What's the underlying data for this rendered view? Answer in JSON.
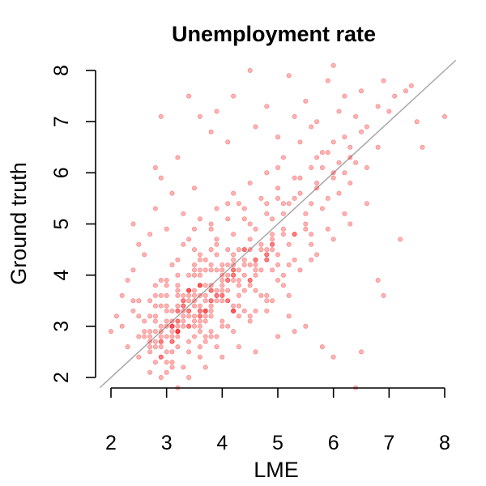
{
  "chart_data": {
    "type": "scatter",
    "title": "Unemployment rate",
    "xlabel": "LME",
    "ylabel": "Ground truth",
    "xlim": [
      2,
      8
    ],
    "ylim": [
      2,
      8
    ],
    "xticks": [
      "2",
      "3",
      "4",
      "5",
      "6",
      "7",
      "8"
    ],
    "yticks": [
      "2",
      "3",
      "4",
      "5",
      "6",
      "7",
      "8"
    ],
    "reference_line": {
      "type": "identity",
      "label": "y = x",
      "color": "#a8a8a8"
    },
    "series_color": "#ff0000",
    "grid": false,
    "legend": "none",
    "points": [
      [
        2.9,
        3.6
      ],
      [
        3.1,
        2.7
      ],
      [
        3.9,
        3.6
      ],
      [
        2.4,
        3.5
      ],
      [
        3.7,
        4.1
      ],
      [
        4.8,
        4.4
      ],
      [
        4.3,
        5.4
      ],
      [
        4.1,
        5.4
      ],
      [
        3.4,
        3.0
      ],
      [
        3.1,
        2.2
      ],
      [
        3.8,
        4.9
      ],
      [
        4.5,
        3.1
      ],
      [
        3.6,
        2.9
      ],
      [
        2.7,
        2.7
      ],
      [
        3.5,
        4.1
      ],
      [
        3.8,
        2.8
      ],
      [
        3.7,
        3.3
      ],
      [
        4.4,
        3.7
      ],
      [
        5.1,
        5.2
      ],
      [
        5.2,
        3.2
      ],
      [
        3.2,
        3.1
      ],
      [
        3.4,
        2.5
      ],
      [
        5.3,
        4.8
      ],
      [
        4.8,
        5.4
      ],
      [
        3.1,
        2.7
      ],
      [
        3.4,
        3.7
      ],
      [
        3.6,
        3.2
      ],
      [
        2.9,
        3.4
      ],
      [
        3.8,
        3.3
      ],
      [
        3.2,
        3.6
      ],
      [
        3.0,
        2.5
      ],
      [
        4.6,
        4.3
      ],
      [
        2.9,
        2.8
      ],
      [
        4.8,
        3.3
      ],
      [
        4.6,
        3.3
      ],
      [
        4.4,
        4.5
      ],
      [
        3.6,
        4.4
      ],
      [
        5.3,
        5.5
      ],
      [
        5.6,
        4.8
      ],
      [
        4.2,
        3.3
      ],
      [
        2.9,
        2.6
      ],
      [
        5.2,
        3.6
      ],
      [
        3.1,
        3.0
      ],
      [
        4.8,
        3.6
      ],
      [
        5.5,
        5.0
      ],
      [
        4.4,
        4.5
      ],
      [
        4.3,
        3.2
      ],
      [
        5.1,
        4.0
      ],
      [
        3.3,
        3.5
      ],
      [
        2.8,
        2.6
      ],
      [
        2.5,
        3.5
      ],
      [
        4.5,
        4.7
      ],
      [
        5.1,
        4.9
      ],
      [
        4.5,
        3.9
      ],
      [
        3.8,
        4.1
      ],
      [
        2.8,
        3.6
      ],
      [
        4.6,
        4.1
      ],
      [
        3.5,
        3.2
      ],
      [
        2.8,
        3.8
      ],
      [
        3.5,
        4.2
      ],
      [
        2.7,
        3.2
      ],
      [
        3.7,
        3.1
      ],
      [
        3.2,
        2.8
      ],
      [
        3.8,
        4.5
      ],
      [
        3.6,
        4.1
      ],
      [
        3.1,
        2.9
      ],
      [
        3.7,
        4.3
      ],
      [
        3.7,
        3.3
      ],
      [
        2.9,
        2.7
      ],
      [
        5.6,
        5.4
      ],
      [
        4.2,
        4.1
      ],
      [
        3.9,
        2.8
      ],
      [
        3.4,
        3.6
      ],
      [
        5.2,
        5.4
      ],
      [
        4.2,
        3.9
      ],
      [
        3.4,
        3.3
      ],
      [
        4.9,
        5.1
      ],
      [
        4.5,
        3.9
      ],
      [
        5.8,
        6.1
      ],
      [
        3.2,
        2.9
      ],
      [
        4.0,
        3.6
      ],
      [
        3.8,
        3.5
      ],
      [
        2.8,
        2.7
      ],
      [
        4.9,
        4.8
      ],
      [
        3.7,
        2.7
      ],
      [
        5.0,
        4.4
      ],
      [
        3.9,
        4.6
      ],
      [
        4.3,
        3.6
      ],
      [
        3.6,
        3.3
      ],
      [
        4.0,
        3.9
      ],
      [
        3.2,
        4.0
      ],
      [
        4.9,
        4.6
      ],
      [
        4.5,
        4.5
      ],
      [
        3.2,
        2.9
      ],
      [
        4.2,
        3.3
      ],
      [
        3.6,
        3.8
      ],
      [
        4.2,
        4.2
      ],
      [
        3.0,
        3.9
      ],
      [
        4.2,
        3.4
      ],
      [
        3.9,
        3.5
      ],
      [
        3.2,
        3.7
      ],
      [
        4.1,
        4.5
      ],
      [
        3.0,
        3.3
      ],
      [
        4.2,
        3.3
      ],
      [
        4.2,
        4.1
      ],
      [
        4.1,
        3.5
      ],
      [
        3.5,
        4.5
      ],
      [
        3.1,
        3.0
      ],
      [
        3.1,
        3.1
      ],
      [
        4.0,
        3.5
      ],
      [
        3.0,
        3.6
      ],
      [
        3.8,
        3.8
      ],
      [
        5.0,
        4.2
      ],
      [
        3.2,
        3.0
      ],
      [
        2.9,
        2.7
      ],
      [
        3.5,
        4.0
      ],
      [
        3.2,
        3.3
      ],
      [
        4.9,
        3.5
      ],
      [
        4.3,
        3.8
      ],
      [
        3.6,
        3.1
      ],
      [
        3.3,
        3.4
      ],
      [
        3.6,
        4.0
      ],
      [
        4.9,
        4.6
      ],
      [
        2.5,
        2.8
      ],
      [
        3.4,
        3.7
      ],
      [
        3.6,
        2.6
      ],
      [
        4.8,
        4.5
      ],
      [
        5.6,
        4.3
      ],
      [
        4.9,
        4.7
      ],
      [
        4.0,
        4.1
      ],
      [
        4.1,
        3.9
      ],
      [
        5.1,
        4.8
      ],
      [
        3.6,
        3.2
      ],
      [
        5.0,
        5.5
      ],
      [
        2.9,
        2.9
      ],
      [
        3.6,
        3.8
      ],
      [
        4.6,
        4.0
      ],
      [
        4.0,
        3.7
      ],
      [
        3.2,
        3.1
      ],
      [
        5.2,
        4.2
      ],
      [
        4.4,
        5.1
      ],
      [
        3.7,
        3.2
      ],
      [
        4.2,
        4.0
      ],
      [
        3.3,
        3.3
      ],
      [
        3.8,
        3.7
      ],
      [
        4.7,
        4.5
      ],
      [
        3.6,
        3.8
      ],
      [
        3.9,
        4.4
      ],
      [
        3.4,
        3.0
      ],
      [
        2.7,
        2.8
      ],
      [
        3.3,
        3.1
      ],
      [
        4.2,
        4.3
      ],
      [
        4.3,
        4.5
      ],
      [
        3.1,
        3.0
      ],
      [
        3.8,
        3.5
      ],
      [
        4.8,
        4.3
      ],
      [
        2.9,
        2.4
      ],
      [
        3.5,
        3.6
      ],
      [
        4.8,
        4.3
      ],
      [
        4.0,
        3.0
      ],
      [
        4.0,
        3.6
      ],
      [
        3.5,
        3.5
      ],
      [
        3.8,
        4.2
      ],
      [
        3.6,
        3.0
      ],
      [
        4.1,
        4.0
      ],
      [
        4.6,
        4.2
      ],
      [
        3.3,
        3.4
      ],
      [
        4.5,
        3.8
      ],
      [
        3.3,
        3.6
      ],
      [
        3.0,
        3.0
      ],
      [
        4.6,
        4.9
      ],
      [
        2.7,
        2.6
      ],
      [
        3.5,
        3.1
      ],
      [
        2.9,
        2.4
      ],
      [
        3.2,
        3.3
      ],
      [
        4.4,
        4.3
      ],
      [
        3.1,
        2.8
      ],
      [
        3.3,
        3.2
      ],
      [
        3.4,
        3.7
      ],
      [
        3.3,
        3.5
      ],
      [
        4.2,
        4.0
      ],
      [
        3.7,
        3.6
      ],
      [
        4.8,
        4.4
      ],
      [
        2.8,
        3.2
      ],
      [
        3.7,
        3.3
      ],
      [
        5.3,
        4.8
      ],
      [
        3.9,
        3.6
      ],
      [
        4.0,
        3.8
      ],
      [
        4.5,
        4.2
      ],
      [
        3.4,
        3.2
      ],
      [
        3.5,
        3.7
      ],
      [
        4.1,
        3.5
      ],
      [
        3.8,
        3.2
      ],
      [
        4.7,
        4.1
      ],
      [
        3.0,
        3.1
      ],
      [
        3.9,
        4.1
      ],
      [
        3.6,
        3.3
      ],
      [
        4.4,
        4.0
      ],
      [
        3.2,
        2.9
      ],
      [
        4.0,
        4.2
      ],
      [
        3.6,
        3.4
      ],
      [
        2.6,
        2.9
      ],
      [
        4.1,
        3.9
      ],
      [
        3.2,
        2.9
      ],
      [
        3.8,
        3.7
      ],
      [
        3.5,
        3.4
      ],
      [
        4.3,
        4.1
      ],
      [
        3.0,
        2.8
      ],
      [
        4.1,
        3.7
      ],
      [
        3.4,
        3.5
      ],
      [
        4.6,
        4.3
      ],
      [
        3.9,
        3.7
      ],
      [
        3.3,
        3.0
      ],
      [
        4.2,
        4.4
      ],
      [
        3.7,
        3.5
      ],
      [
        2.8,
        2.9
      ],
      [
        4.9,
        4.5
      ],
      [
        3.1,
        3.3
      ],
      [
        3.6,
        3.6
      ],
      [
        4.3,
        3.9
      ],
      [
        3.5,
        3.0
      ],
      [
        4.0,
        4.0
      ],
      [
        3.2,
        3.4
      ],
      [
        4.7,
        4.6
      ],
      [
        3.8,
        3.4
      ],
      [
        2.9,
        3.0
      ],
      [
        4.4,
        4.2
      ],
      [
        3.4,
        3.3
      ],
      [
        4.1,
        4.2
      ],
      [
        3.7,
        3.8
      ],
      [
        5.5,
        5.2
      ],
      [
        6.1,
        6.2
      ],
      [
        5.7,
        5.8
      ],
      [
        6.3,
        6.5
      ],
      [
        5.9,
        5.5
      ],
      [
        6.4,
        7.1
      ],
      [
        6.6,
        6.9
      ],
      [
        6.2,
        6.0
      ],
      [
        5.4,
        5.9
      ],
      [
        6.0,
        6.6
      ],
      [
        6.9,
        7.8
      ],
      [
        7.1,
        7.5
      ],
      [
        7.6,
        6.5
      ],
      [
        8.0,
        7.1
      ],
      [
        7.3,
        7.6
      ],
      [
        6.8,
        7.3
      ],
      [
        6.5,
        6.8
      ],
      [
        5.8,
        6.4
      ],
      [
        5.0,
        6.1
      ],
      [
        5.6,
        6.9
      ],
      [
        6.2,
        7.5
      ],
      [
        5.9,
        7.8
      ],
      [
        6.0,
        8.1
      ],
      [
        5.5,
        7.4
      ],
      [
        4.8,
        7.3
      ],
      [
        5.2,
        7.9
      ],
      [
        4.5,
        8.0
      ],
      [
        4.2,
        7.5
      ],
      [
        3.9,
        7.2
      ],
      [
        3.6,
        7.1
      ],
      [
        3.4,
        7.5
      ],
      [
        2.9,
        7.1
      ],
      [
        3.8,
        6.8
      ],
      [
        4.1,
        6.6
      ],
      [
        4.6,
        6.9
      ],
      [
        5.0,
        6.7
      ],
      [
        5.3,
        7.1
      ],
      [
        5.7,
        7.0
      ],
      [
        6.1,
        7.2
      ],
      [
        6.5,
        7.6
      ],
      [
        6.8,
        6.5
      ],
      [
        7.0,
        7.2
      ],
      [
        7.4,
        7.7
      ],
      [
        7.5,
        7.0
      ],
      [
        7.2,
        4.7
      ],
      [
        6.8,
        3.9
      ],
      [
        6.9,
        3.6
      ],
      [
        6.5,
        2.5
      ],
      [
        6.0,
        2.4
      ],
      [
        6.4,
        1.8
      ],
      [
        5.8,
        2.6
      ],
      [
        5.5,
        3.0
      ],
      [
        5.3,
        2.9
      ],
      [
        5.0,
        2.8
      ],
      [
        4.6,
        2.5
      ],
      [
        4.3,
        2.6
      ],
      [
        4.0,
        2.4
      ],
      [
        3.7,
        2.2
      ],
      [
        3.4,
        2.0
      ],
      [
        3.2,
        1.8
      ],
      [
        2.9,
        2.0
      ],
      [
        2.7,
        2.1
      ],
      [
        2.5,
        2.4
      ],
      [
        2.3,
        2.6
      ],
      [
        2.2,
        3.0
      ],
      [
        2.1,
        3.2
      ],
      [
        2.0,
        2.9
      ],
      [
        2.2,
        3.6
      ],
      [
        2.4,
        4.1
      ],
      [
        2.5,
        4.6
      ],
      [
        2.4,
        5.0
      ],
      [
        2.7,
        4.8
      ],
      [
        2.8,
        5.3
      ],
      [
        3.1,
        5.6
      ],
      [
        2.9,
        5.9
      ],
      [
        2.8,
        6.1
      ],
      [
        3.2,
        6.3
      ],
      [
        3.5,
        5.7
      ],
      [
        3.3,
        5.2
      ],
      [
        3.0,
        4.9
      ],
      [
        2.6,
        4.4
      ],
      [
        2.3,
        3.9
      ],
      [
        2.4,
        3.3
      ],
      [
        2.6,
        2.8
      ],
      [
        2.8,
        2.3
      ],
      [
        3.0,
        2.1
      ],
      [
        3.1,
        2.3
      ],
      [
        2.7,
        2.5
      ],
      [
        2.6,
        3.1
      ],
      [
        2.8,
        3.4
      ],
      [
        3.0,
        3.8
      ],
      [
        3.2,
        4.3
      ],
      [
        3.4,
        4.7
      ],
      [
        3.6,
        5.1
      ],
      [
        3.9,
        5.3
      ],
      [
        4.2,
        5.6
      ],
      [
        4.5,
        5.8
      ],
      [
        4.8,
        6.0
      ],
      [
        5.1,
        6.3
      ],
      [
        5.4,
        6.6
      ],
      [
        5.7,
        6.3
      ],
      [
        6.0,
        6.0
      ],
      [
        6.3,
        5.8
      ],
      [
        6.6,
        5.4
      ],
      [
        6.3,
        5.0
      ],
      [
        6.0,
        4.7
      ],
      [
        5.7,
        4.4
      ],
      [
        5.4,
        4.1
      ],
      [
        5.1,
        3.8
      ],
      [
        4.8,
        3.5
      ],
      [
        4.5,
        3.2
      ],
      [
        4.2,
        2.9
      ],
      [
        3.9,
        2.6
      ],
      [
        3.6,
        2.4
      ],
      [
        3.3,
        2.2
      ],
      [
        3.0,
        2.3
      ],
      [
        2.7,
        2.9
      ],
      [
        2.5,
        3.2
      ],
      [
        2.7,
        3.5
      ],
      [
        2.9,
        3.9
      ],
      [
        3.1,
        4.2
      ],
      [
        3.3,
        4.6
      ],
      [
        3.5,
        4.9
      ],
      [
        3.8,
        5.0
      ],
      [
        4.1,
        5.1
      ],
      [
        4.4,
        5.3
      ],
      [
        4.7,
        5.5
      ],
      [
        5.0,
        5.7
      ],
      [
        5.3,
        5.9
      ],
      [
        5.6,
        6.1
      ],
      [
        5.9,
        6.4
      ],
      [
        6.2,
        6.7
      ],
      [
        6.4,
        6.2
      ],
      [
        6.1,
        5.6
      ],
      [
        5.8,
        5.3
      ],
      [
        5.5,
        4.9
      ],
      [
        5.2,
        4.6
      ],
      [
        4.9,
        4.1
      ],
      [
        4.6,
        3.7
      ],
      [
        4.3,
        3.4
      ],
      [
        4.0,
        3.1
      ],
      [
        3.7,
        2.8
      ],
      [
        3.4,
        2.7
      ],
      [
        3.1,
        2.5
      ],
      [
        2.8,
        3.1
      ],
      [
        3.0,
        3.4
      ],
      [
        3.2,
        3.8
      ],
      [
        3.4,
        4.0
      ],
      [
        3.6,
        4.3
      ],
      [
        3.9,
        4.7
      ],
      [
        4.2,
        4.8
      ],
      [
        4.5,
        5.0
      ],
      [
        4.8,
        5.2
      ],
      [
        5.1,
        5.4
      ],
      [
        5.4,
        5.6
      ],
      [
        5.7,
        5.7
      ],
      [
        6.0,
        5.9
      ],
      [
        6.3,
        6.3
      ],
      [
        6.6,
        6.1
      ],
      [
        6.2,
        5.2
      ],
      [
        5.9,
        4.9
      ],
      [
        5.6,
        4.6
      ],
      [
        5.3,
        4.3
      ],
      [
        5.0,
        3.9
      ],
      [
        4.7,
        3.6
      ],
      [
        4.4,
        3.3
      ],
      [
        4.1,
        3.0
      ],
      [
        3.8,
        2.9
      ],
      [
        3.5,
        2.8
      ],
      [
        3.2,
        2.6
      ]
    ]
  }
}
